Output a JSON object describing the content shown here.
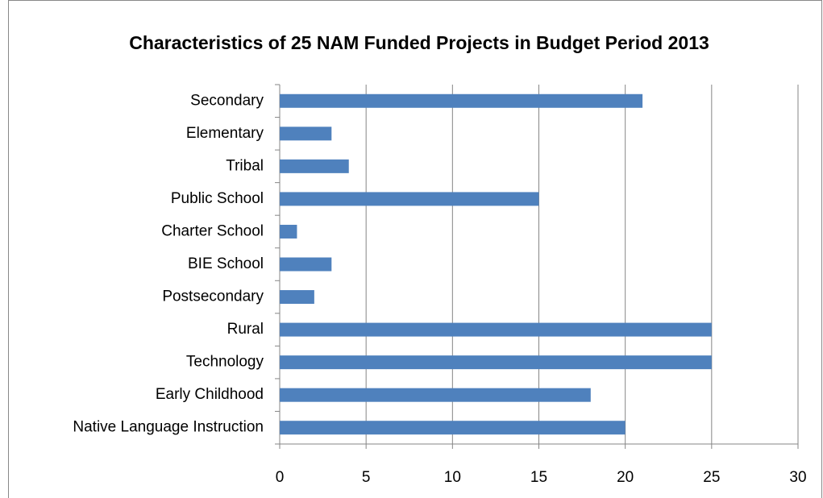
{
  "chart_data": {
    "type": "bar",
    "orientation": "horizontal",
    "title": "Characteristics of 25 NAM Funded Projects in Budget Period 2013",
    "categories": [
      "Secondary",
      "Elementary",
      "Tribal",
      "Public School",
      "Charter School",
      "BIE School",
      "Postsecondary",
      "Rural",
      "Technology",
      "Early Childhood",
      "Native Language Instruction"
    ],
    "values": [
      21,
      3,
      4,
      15,
      1,
      3,
      2,
      25,
      25,
      18,
      20
    ],
    "color": "#4f81bd",
    "xlim": [
      0,
      30
    ],
    "xticks": [
      0,
      5,
      10,
      15,
      20,
      25,
      30
    ],
    "grid": true
  }
}
